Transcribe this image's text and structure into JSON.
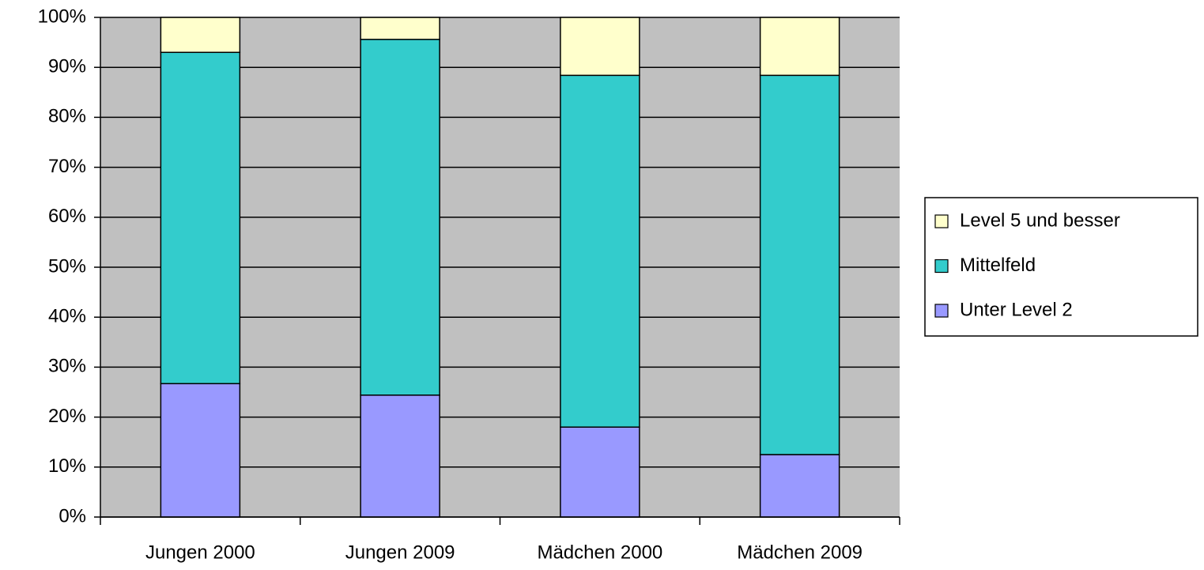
{
  "chart_data": {
    "type": "stacked_bar",
    "categories": [
      "Jungen 2000",
      "Jungen 2009",
      "Mädchen 2000",
      "Mädchen 2009"
    ],
    "series": [
      {
        "name": "Unter Level 2",
        "color": "#9999ff",
        "values": [
          26.7,
          24.4,
          18.0,
          12.5
        ]
      },
      {
        "name": "Mittelfeld",
        "color": "#33cccc",
        "values": [
          66.3,
          71.2,
          70.4,
          75.9
        ]
      },
      {
        "name": "Level 5 und besser",
        "color": "#ffffcc",
        "values": [
          7.0,
          4.4,
          11.6,
          11.6
        ]
      }
    ],
    "ylim": [
      0,
      100
    ],
    "yticks": [
      {
        "value": 0,
        "label": "0%"
      },
      {
        "value": 10,
        "label": "10%"
      },
      {
        "value": 20,
        "label": "20%"
      },
      {
        "value": 30,
        "label": "30%"
      },
      {
        "value": 40,
        "label": "40%"
      },
      {
        "value": 50,
        "label": "50%"
      },
      {
        "value": 60,
        "label": "60%"
      },
      {
        "value": 70,
        "label": "70%"
      },
      {
        "value": 80,
        "label": "80%"
      },
      {
        "value": 90,
        "label": "90%"
      },
      {
        "value": 100,
        "label": "100%"
      }
    ],
    "grid": true,
    "background": "#c0c0c0",
    "legend": "right"
  }
}
